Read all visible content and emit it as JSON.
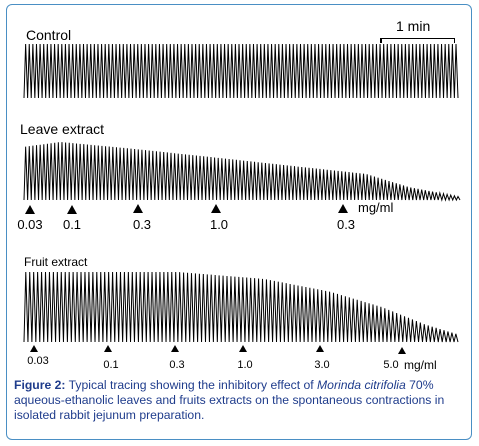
{
  "chart_data": [
    {
      "type": "line",
      "name_label": "Control",
      "scale_bar_label": "1 min",
      "cycles": 120,
      "amplitude_relative": [
        [
          0.0,
          1.0
        ],
        [
          1.0,
          1.0
        ]
      ],
      "doses": [],
      "unit": ""
    },
    {
      "type": "line",
      "name_label": "Leave extract",
      "cycles": 120,
      "amplitude_relative": [
        [
          0.0,
          0.92
        ],
        [
          0.08,
          1.0
        ],
        [
          0.25,
          0.88
        ],
        [
          0.45,
          0.72
        ],
        [
          0.62,
          0.58
        ],
        [
          0.78,
          0.45
        ],
        [
          0.88,
          0.22
        ],
        [
          1.0,
          0.05
        ]
      ],
      "doses": [
        "0.03",
        "0.1",
        "0.3",
        "1.0",
        "0.3"
      ],
      "unit": "mg/ml"
    },
    {
      "type": "line",
      "name_label": "Fruit extract",
      "cycles": 110,
      "amplitude_relative": [
        [
          0.0,
          1.0
        ],
        [
          0.35,
          1.0
        ],
        [
          0.55,
          0.9
        ],
        [
          0.7,
          0.72
        ],
        [
          0.82,
          0.5
        ],
        [
          0.92,
          0.25
        ],
        [
          1.0,
          0.1
        ]
      ],
      "doses": [
        "0.03",
        "0.1",
        "0.3",
        "1.0",
        "3.0",
        "5.0"
      ],
      "unit": "mg/ml"
    }
  ],
  "caption": {
    "label": "Figure 2:",
    "text_before": " Typical tracing showing the inhibitory effect of ",
    "species": "Morinda citrifolia",
    "text_after": " 70% aqueous-ethanolic leaves and fruits extracts on the spontaneous contractions in isolated rabbit jejunum preparation."
  }
}
